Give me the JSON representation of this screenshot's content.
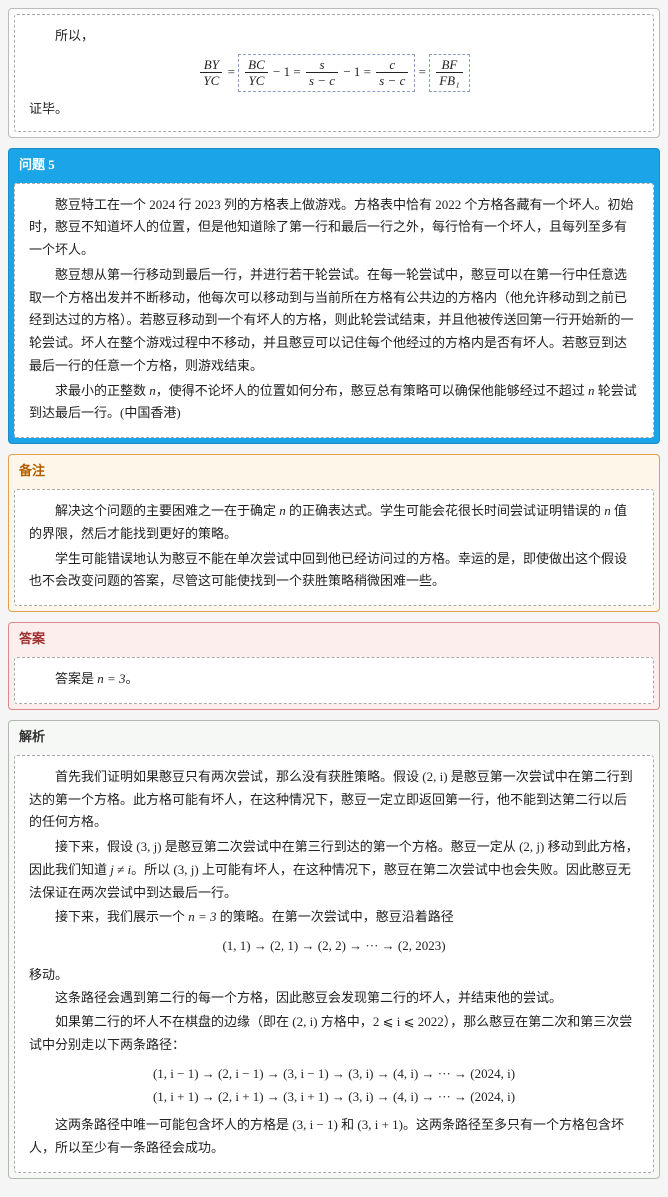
{
  "proof_box": {
    "intro": "所以，",
    "end": "证毕。",
    "eq": {
      "f1n": "BY",
      "f1d": "YC",
      "f2n": "BC",
      "f2d": "YC",
      "f3n": "s",
      "f3d": "s − c",
      "f4n": "c",
      "f4d": "s − c",
      "f5n": "BF",
      "f5d": "FB₁"
    }
  },
  "problem": {
    "title": "问题 5",
    "p1": "憨豆特工在一个 2024 行 2023 列的方格表上做游戏。方格表中恰有 2022 个方格各藏有一个坏人。初始时，憨豆不知道坏人的位置，但是他知道除了第一行和最后一行之外，每行恰有一个坏人，且每列至多有一个坏人。",
    "p2": "憨豆想从第一行移动到最后一行，并进行若干轮尝试。在每一轮尝试中，憨豆可以在第一行中任意选取一个方格出发并不断移动，他每次可以移动到与当前所在方格有公共边的方格内（他允许移动到之前已经到达过的方格）。若憨豆移动到一个有坏人的方格，则此轮尝试结束，并且他被传送回第一行开始新的一轮尝试。坏人在整个游戏过程中不移动，并且憨豆可以记住每个他经过的方格内是否有坏人。若憨豆到达最后一行的任意一个方格，则游戏结束。",
    "p3a": "求最小的正整数 ",
    "p3b": "n",
    "p3c": "，使得不论坏人的位置如何分布，憨豆总有策略可以确保他能够经过不超过 ",
    "p3d": "n",
    "p3e": " 轮尝试到达最后一行。(中国香港)"
  },
  "remark": {
    "title": "备注",
    "p1a": "解决这个问题的主要困难之一在于确定 ",
    "p1b": "n",
    "p1c": " 的正确表达式。学生可能会花很长时间尝试证明错误的 ",
    "p1d": "n",
    "p1e": " 值的界限，然后才能找到更好的策略。",
    "p2": "学生可能错误地认为憨豆不能在单次尝试中回到他已经访问过的方格。幸运的是，即使做出这个假设也不会改变问题的答案，尽管这可能使找到一个获胜策略稍微困难一些。"
  },
  "answer": {
    "title": "答案",
    "text_a": "答案是 ",
    "text_b": "n = 3",
    "text_c": "。"
  },
  "solution": {
    "title": "解析",
    "p1a": "首先我们证明如果憨豆只有两次尝试，那么没有获胜策略。假设 ",
    "p1b": "(2, i)",
    "p1c": " 是憨豆第一次尝试中在第二行到达的第一个方格。此方格可能有坏人，在这种情况下，憨豆一定立即返回第一行，他不能到达第二行以后的任何方格。",
    "p2a": "接下来，假设 ",
    "p2b": "(3, j)",
    "p2c": " 是憨豆第二次尝试中在第三行到达的第一个方格。憨豆一定从 ",
    "p2d": "(2, j)",
    "p2e": " 移动到此方格，因此我们知道 ",
    "p2f": "j ≠ i",
    "p2g": "。所以 ",
    "p2h": "(3, j)",
    "p2i": " 上可能有坏人，在这种情况下，憨豆在第二次尝试中也会失败。因此憨豆无法保证在两次尝试中到达最后一行。",
    "p3a": "接下来，我们展示一个 ",
    "p3b": "n = 3",
    "p3c": " 的策略。在第一次尝试中，憨豆沿着路径",
    "eq1": "(1, 1) → (2, 1) → (2, 2) → ··· → (2, 2023)",
    "p4": "移动。",
    "p5": "这条路径会遇到第二行的每一个方格，因此憨豆会发现第二行的坏人，并结束他的尝试。",
    "p6a": "如果第二行的坏人不在棋盘的边缘（即在 ",
    "p6b": "(2, i)",
    "p6c": " 方格中，",
    "p6d": "2 ⩽ i ⩽ 2022",
    "p6e": "），那么憨豆在第二次和第三次尝试中分别走以下两条路径：",
    "eq2a": "(1, i − 1) → (2, i − 1) → (3, i − 1) → (3, i) → (4, i) → ··· → (2024, i)",
    "eq2b": "(1, i + 1) → (2, i + 1) → (3, i + 1) → (3, i) → (4, i) → ··· → (2024, i)",
    "p7a": "这两条路径中唯一可能包含坏人的方格是 ",
    "p7b": "(3, i − 1)",
    "p7c": " 和 ",
    "p7d": "(3, i + 1)",
    "p7e": "。这两条路径至多只有一个方格包含坏人，所以至少有一条路径会成功。"
  }
}
